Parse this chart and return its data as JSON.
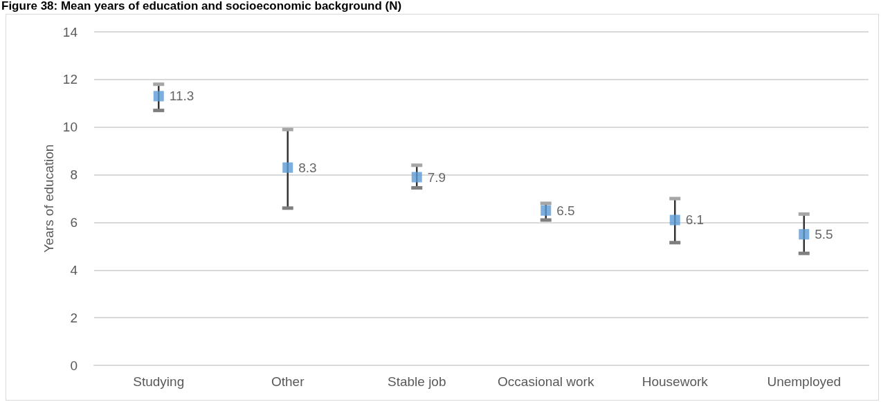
{
  "chart_data": {
    "type": "scatter",
    "title": "Figure 38: Mean years of education and socioeconomic background (N)",
    "ylabel": "Years of education",
    "categories": [
      "Studying",
      "Other",
      "Stable job",
      "Occasional work",
      "Housework",
      "Unemployed"
    ],
    "values": [
      11.3,
      8.3,
      7.9,
      6.5,
      6.1,
      5.5
    ],
    "errors": [
      [
        10.7,
        11.8
      ],
      [
        6.6,
        9.9
      ],
      [
        7.45,
        8.4
      ],
      [
        6.1,
        6.8
      ],
      [
        5.15,
        7.0
      ],
      [
        4.7,
        6.35
      ]
    ],
    "color": "#5b9bd5",
    "marker": "square",
    "data_labels": true,
    "ylim": [
      0,
      14
    ],
    "yticks": [
      0,
      2,
      4,
      6,
      8,
      10,
      12,
      14
    ],
    "grid": "y"
  }
}
